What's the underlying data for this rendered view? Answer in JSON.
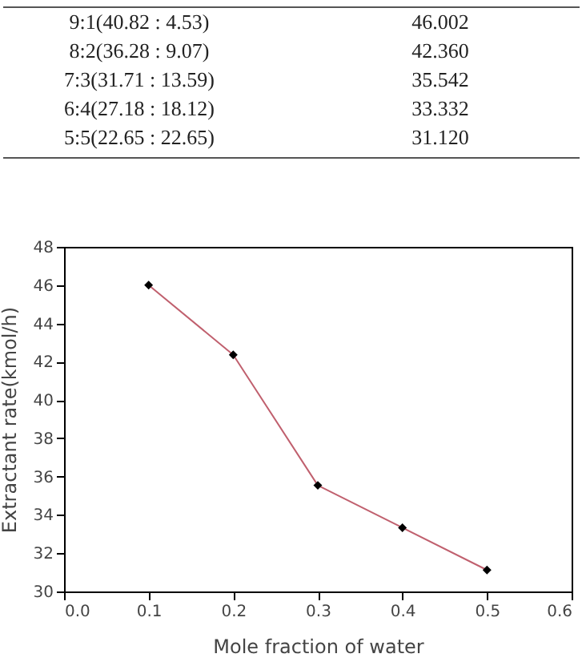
{
  "chart_data": {
    "type": "line",
    "xlabel": "Mole fraction of water",
    "ylabel": "Extractant rate(kmol/h)",
    "x": [
      0.1,
      0.2,
      0.3,
      0.4,
      0.5
    ],
    "series": [
      {
        "color": "#c0606e",
        "values": [
          46.002,
          42.36,
          35.542,
          33.332,
          31.12
        ]
      }
    ],
    "annotations": [
      "9:1(40.82 : 4.53)",
      "46.002",
      "8:2(36.28 : 9.07)",
      "42.360",
      "7:3(31.71 : 13.59)",
      "35.542",
      "6:4(27.18 : 18.12)",
      "33.332",
      "5:5(22.65 : 22.65)",
      "31.120"
    ],
    "xlim": [
      0,
      0.6
    ],
    "xticks": [
      {
        "value": 0,
        "label": "0.0"
      },
      {
        "value": 0.1,
        "label": "0.1"
      },
      {
        "value": 0.2,
        "label": "0.2"
      },
      {
        "value": 0.3,
        "label": "0.3"
      },
      {
        "value": 0.4,
        "label": "0.4"
      },
      {
        "value": 0.5,
        "label": "0.5"
      },
      {
        "value": 0.6,
        "label": "0.6"
      }
    ],
    "ylim": [
      30,
      48
    ],
    "yticks": [
      30,
      32,
      34,
      36,
      38,
      40,
      42,
      44,
      46,
      48
    ],
    "grid": false,
    "marker": "diamond",
    "line_style": "solid"
  }
}
